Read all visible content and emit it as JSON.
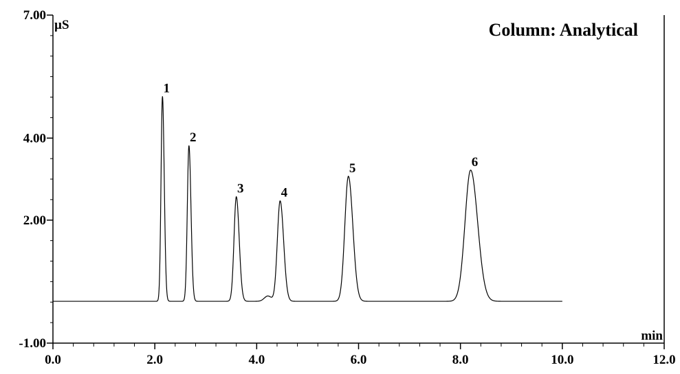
{
  "chart_data": {
    "type": "line",
    "title": "Column: Analytical",
    "xlabel": "min",
    "ylabel": "µS",
    "xlim": [
      0,
      12
    ],
    "ylim": [
      -1,
      7
    ],
    "xticks": [
      {
        "value": 0,
        "label": "0.0"
      },
      {
        "value": 2,
        "label": "2.0"
      },
      {
        "value": 4,
        "label": "4.0"
      },
      {
        "value": 6,
        "label": "6.0"
      },
      {
        "value": 8,
        "label": "8.0"
      },
      {
        "value": 10,
        "label": "10.0"
      },
      {
        "value": 12,
        "label": "12.0"
      }
    ],
    "yticks": [
      {
        "value": -1,
        "label": "-1.00"
      },
      {
        "value": 2,
        "label": "2.00"
      },
      {
        "value": 4,
        "label": "4.00"
      },
      {
        "value": 7,
        "label": "7.00"
      }
    ],
    "grid": false,
    "baseline": 0.02,
    "x_end": 10.0,
    "series": [
      {
        "peaks": [
          {
            "label": "1",
            "time": 2.15,
            "height": 5.0,
            "width": 0.028
          },
          {
            "label": "2",
            "time": 2.67,
            "height": 3.8,
            "width": 0.032
          },
          {
            "label": "3",
            "time": 3.6,
            "height": 2.55,
            "width": 0.045
          },
          {
            "label": "4",
            "time": 4.46,
            "height": 2.45,
            "width": 0.055
          },
          {
            "label": "5",
            "time": 5.8,
            "height": 3.05,
            "width": 0.07
          },
          {
            "label": "6",
            "time": 8.2,
            "height": 3.2,
            "width": 0.11
          }
        ],
        "shoulder": {
          "time": 4.22,
          "height": 0.13,
          "width": 0.07
        }
      }
    ]
  }
}
